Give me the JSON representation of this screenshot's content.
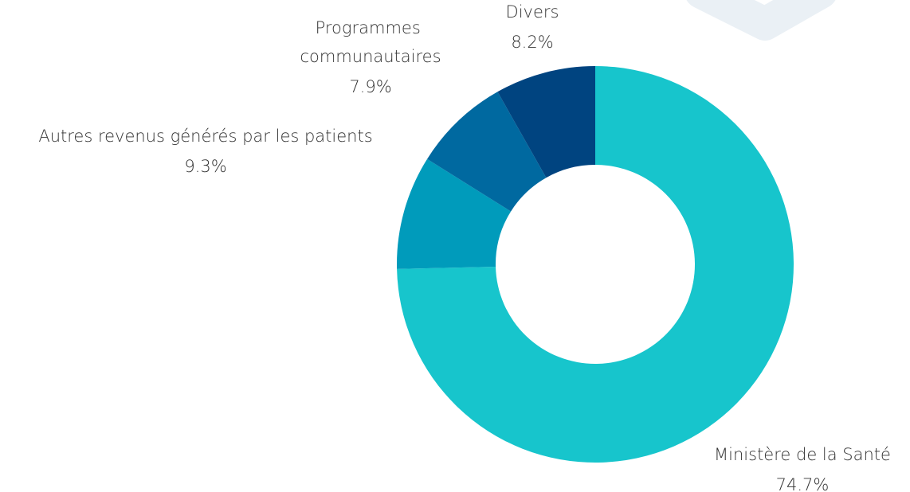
{
  "chart_data": {
    "type": "donut",
    "categories": [
      "Ministère de la Santé",
      "Autres revenus générés par les patients",
      "Programmes communautaires",
      "Divers"
    ],
    "values": [
      74.7,
      9.3,
      7.9,
      8.2
    ],
    "value_labels": [
      "74.7%",
      "9.3%",
      "7.9%",
      "8.2%"
    ],
    "colors": [
      "#17c5cc",
      "#009bbb",
      "#0069a0",
      "#004480"
    ]
  }
}
